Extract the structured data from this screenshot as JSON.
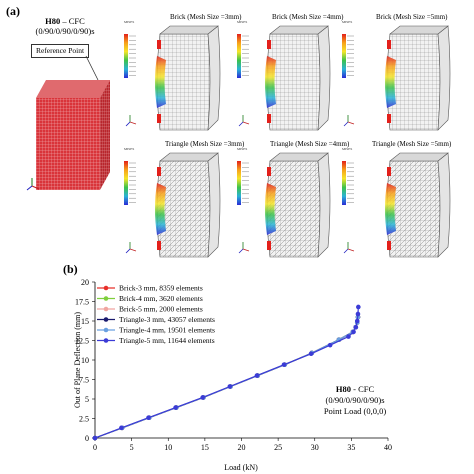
{
  "panel_a": {
    "label": "(a)",
    "model_title_bold": "H80",
    "model_title_rest": " – CFC",
    "model_layup": "(0/90/0/90/0/90)s",
    "reference_point": "Reference Point",
    "meshes": [
      {
        "title": "Brick (Mesh Size =3mm)"
      },
      {
        "title": "Brick (Mesh Size =4mm)"
      },
      {
        "title": "Brick (Mesh Size =5mm)"
      },
      {
        "title": "Triangle (Mesh Size =3mm)"
      },
      {
        "title": "Triangle (Mesh Size =4mm)"
      },
      {
        "title": "Triangle (Mesh Size =5mm)"
      }
    ],
    "contour_header": "MISES",
    "contour_sub": "(Avg: 75%)"
  },
  "panel_b": {
    "label": "(b)",
    "annotation_line1_bold": "H80",
    "annotation_line1_rest": " - CFC",
    "annotation_line2": "(0/90/0/90/0/90)s",
    "annotation_line3": "Point Load (0,0,0)"
  },
  "chart_data": {
    "type": "line",
    "xlabel": "Load (kN)",
    "ylabel": "Out of Plane Deflection (mm)",
    "xlim": [
      0,
      40
    ],
    "ylim": [
      0,
      20
    ],
    "xticks": [
      "0",
      "5",
      "10",
      "15",
      "20",
      "25",
      "30",
      "35",
      "40"
    ],
    "yticks": [
      "0",
      "2.5",
      "5",
      "7.5",
      "10",
      "12.5",
      "15",
      "17.5",
      "20"
    ],
    "grid": false,
    "legend_position": "top-left",
    "series": [
      {
        "name": "Brick-3 mm, 8359 elements",
        "color": "#e8302a",
        "x": [
          0,
          3.7,
          7.4,
          11.1,
          14.8,
          18.5,
          22.2,
          25.9,
          29.6,
          33.3,
          35.2,
          35.6,
          35.8,
          35.9
        ],
        "y": [
          0,
          1.3,
          2.6,
          3.9,
          5.2,
          6.6,
          8.0,
          9.4,
          10.9,
          12.6,
          13.6,
          14.2,
          14.8,
          15.5
        ]
      },
      {
        "name": "Brick-4 mm, 3620 elements",
        "color": "#7fcf3c",
        "x": [
          0,
          3.7,
          7.4,
          11.1,
          14.8,
          18.5,
          22.2,
          25.9,
          29.6,
          33.3,
          35.2,
          35.6,
          35.8,
          35.9
        ],
        "y": [
          0,
          1.3,
          2.6,
          3.9,
          5.2,
          6.6,
          8.0,
          9.4,
          10.9,
          12.6,
          13.6,
          14.2,
          14.8,
          15.5
        ]
      },
      {
        "name": "Brick-5 mm, 2000 elements",
        "color": "#f0a5a0",
        "x": [
          0,
          3.7,
          7.4,
          11.1,
          14.8,
          18.5,
          22.2,
          25.9,
          29.6,
          33.3,
          35.2,
          35.6,
          35.8,
          35.9
        ],
        "y": [
          0,
          1.3,
          2.6,
          3.9,
          5.2,
          6.6,
          8.0,
          9.4,
          10.9,
          12.6,
          13.6,
          14.2,
          14.8,
          15.5
        ]
      },
      {
        "name": "Triangle-3 mm, 43057 elements",
        "color": "#1a1a6e",
        "x": [
          0,
          3.7,
          7.4,
          11.1,
          14.8,
          18.5,
          22.2,
          25.9,
          29.6,
          33.3,
          35.2,
          35.6,
          35.8,
          35.9
        ],
        "y": [
          0,
          1.3,
          2.6,
          3.9,
          5.2,
          6.6,
          8.0,
          9.4,
          10.9,
          12.6,
          13.6,
          14.2,
          14.8,
          15.5
        ]
      },
      {
        "name": "Triangle-4 mm, 19501 elements",
        "color": "#6aa0e0",
        "x": [
          0,
          3.7,
          7.4,
          11.1,
          14.8,
          18.5,
          22.2,
          25.9,
          29.6,
          33.3,
          35.2,
          35.6,
          35.8,
          35.9
        ],
        "y": [
          0,
          1.3,
          2.6,
          3.9,
          5.2,
          6.6,
          8.0,
          9.4,
          10.9,
          12.6,
          13.6,
          14.2,
          14.8,
          15.5
        ]
      },
      {
        "name": "Triangle-5 mm, 11644 elements",
        "color": "#3b3bd6",
        "x": [
          0,
          3.6,
          7.3,
          11.0,
          14.7,
          18.4,
          22.1,
          25.8,
          29.5,
          32.1,
          34.6,
          35.3,
          35.6,
          35.8,
          35.9,
          35.95
        ],
        "y": [
          0,
          1.3,
          2.6,
          3.9,
          5.2,
          6.6,
          8.0,
          9.4,
          10.8,
          11.9,
          13.0,
          13.6,
          14.2,
          15.0,
          15.9,
          16.8
        ]
      }
    ]
  }
}
